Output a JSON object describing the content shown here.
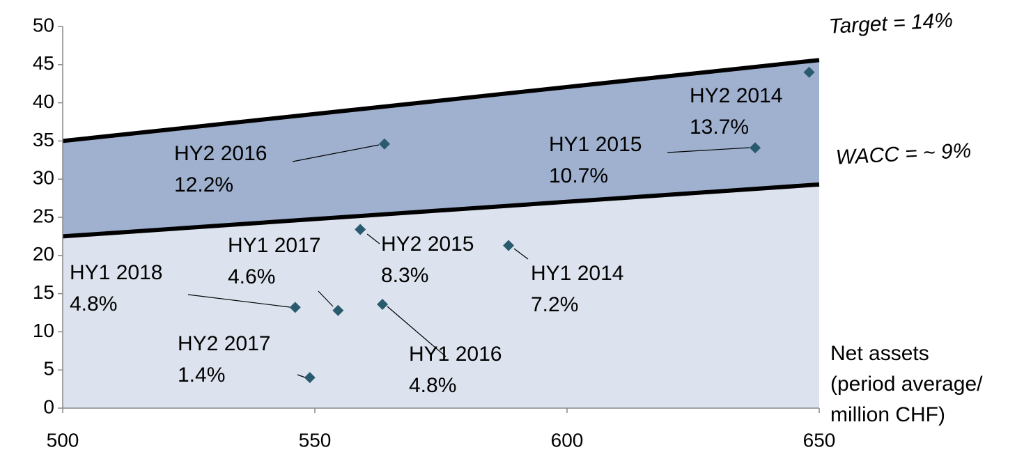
{
  "chart_data": {
    "type": "scatter",
    "x_axis_label": [
      "Net assets",
      "(period average/",
      "million CHF)"
    ],
    "xlim": [
      500,
      650
    ],
    "xticks": [
      500,
      550,
      600,
      650
    ],
    "ylim": [
      0,
      50
    ],
    "yticks": [
      0,
      5,
      10,
      15,
      20,
      25,
      30,
      35,
      40,
      45,
      50
    ],
    "bands": {
      "x": [
        500,
        650
      ],
      "lines": [
        {
          "name": "WACC = ~ 9%",
          "values": [
            22.5,
            29.3
          ]
        },
        {
          "name": "Target = 14%",
          "values": [
            35,
            45.6
          ]
        }
      ],
      "colors": [
        "#dde3ee",
        "#9fb1cf"
      ]
    },
    "series": [
      {
        "color": "#2a5a6e",
        "x": [
          648,
          637.3,
          563.8,
          559,
          588.4,
          546.1,
          554.6,
          563.4,
          549
        ],
        "values": [
          44,
          34.1,
          34.6,
          23.4,
          21.3,
          13.2,
          12.8,
          13.6,
          4
        ],
        "point_names": [
          "HY2 2014",
          "HY1 2015",
          "HY2 2016",
          "HY2 2015",
          "HY1 2014",
          "HY1 2018",
          "HY1 2017",
          "HY1 2016",
          "HY2 2017"
        ],
        "point_returns": [
          "13.7%",
          "10.7%",
          "12.2%",
          "8.3%",
          "7.2%",
          "4.8%",
          "4.6%",
          "4.8%",
          "1.4%"
        ]
      }
    ]
  }
}
